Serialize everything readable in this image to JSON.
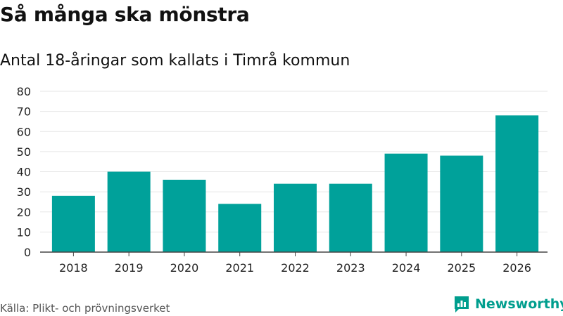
{
  "header": {
    "title": "Så många ska mönstra",
    "subtitle": "Antal 18-åringar som kallats i Timrå kommun"
  },
  "footer": {
    "source": "Källa: Plikt- och prövningsverket",
    "brand": "Newsworthy"
  },
  "colors": {
    "bar": "#00a19a",
    "grid": "#e6e6e6",
    "axis": "#444444",
    "brand": "#009e8e"
  },
  "chart_data": {
    "type": "bar",
    "title": "Så många ska mönstra",
    "subtitle": "Antal 18-åringar som kallats i Timrå kommun",
    "xlabel": "",
    "ylabel": "",
    "categories": [
      "2018",
      "2019",
      "2020",
      "2021",
      "2022",
      "2023",
      "2024",
      "2025",
      "2026"
    ],
    "values": [
      28,
      40,
      36,
      24,
      34,
      34,
      49,
      48,
      68
    ],
    "ylim": [
      0,
      80
    ],
    "yticks": [
      0,
      10,
      20,
      30,
      40,
      50,
      60,
      70,
      80
    ],
    "grid": true,
    "legend": "none"
  }
}
